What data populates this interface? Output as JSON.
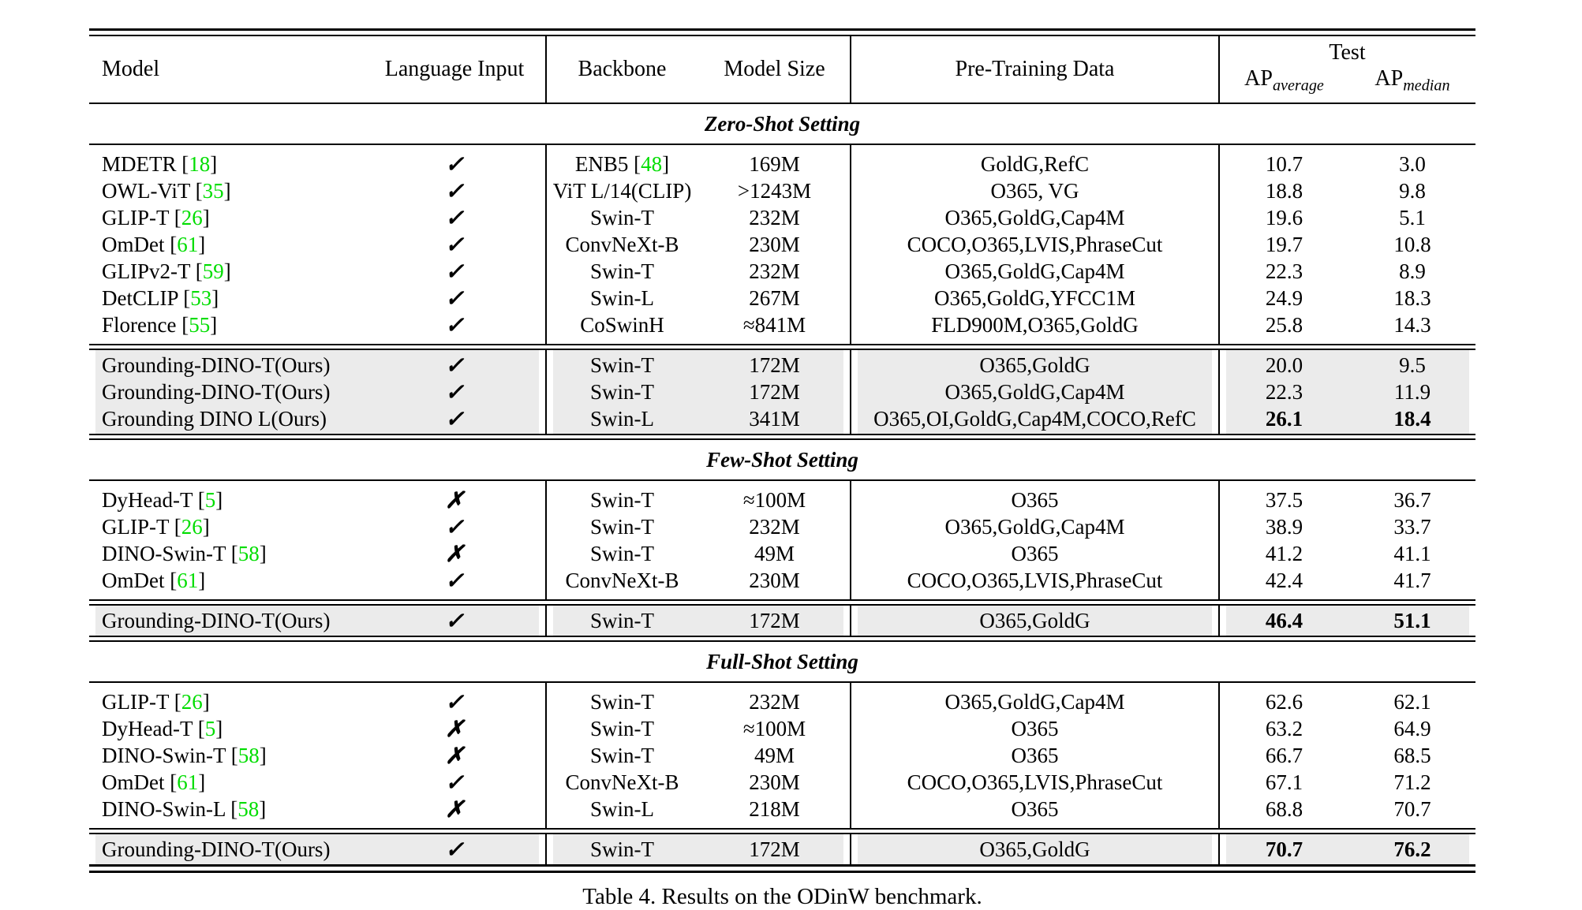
{
  "page": {
    "caption": "Table 4. Results on the ODinW benchmark."
  },
  "colors": {
    "citation": "#00dd00",
    "highlight_row": "#ebebeb"
  },
  "glyphs": {
    "check": "✓",
    "cross": "✗"
  },
  "punct": {
    "cite_open": " [",
    "cite_close": "]"
  },
  "header": {
    "model": "Model",
    "language_input": "Language Input",
    "backbone": "Backbone",
    "model_size": "Model Size",
    "pretraining_data": "Pre-Training Data",
    "test": "Test",
    "ap_average": {
      "base": "AP",
      "sub": "average"
    },
    "ap_median": {
      "base": "AP",
      "sub": "median"
    }
  },
  "sections": [
    {
      "title": "Zero-Shot Setting",
      "rows": [
        {
          "model": "MDETR",
          "cite": "18",
          "lang": "check",
          "backbone": "ENB5",
          "backbone_cite": "48",
          "size": "169M",
          "pretrain": "GoldG,RefC",
          "ap_avg": "10.7",
          "ap_med": "3.0"
        },
        {
          "model": "OWL-ViT",
          "cite": "35",
          "lang": "check",
          "backbone": "ViT L/14(CLIP)",
          "size": ">1243M",
          "pretrain": "O365, VG",
          "ap_avg": "18.8",
          "ap_med": "9.8"
        },
        {
          "model": "GLIP-T",
          "cite": "26",
          "lang": "check",
          "backbone": "Swin-T",
          "size": "232M",
          "pretrain": "O365,GoldG,Cap4M",
          "ap_avg": "19.6",
          "ap_med": "5.1"
        },
        {
          "model": "OmDet",
          "cite": "61",
          "lang": "check",
          "backbone": "ConvNeXt-B",
          "size": "230M",
          "pretrain": "COCO,O365,LVIS,PhraseCut",
          "ap_avg": "19.7",
          "ap_med": "10.8"
        },
        {
          "model": "GLIPv2-T",
          "cite": "59",
          "lang": "check",
          "backbone": "Swin-T",
          "size": "232M",
          "pretrain": "O365,GoldG,Cap4M",
          "ap_avg": "22.3",
          "ap_med": "8.9"
        },
        {
          "model": "DetCLIP",
          "cite": "53",
          "lang": "check",
          "backbone": "Swin-L",
          "size": "267M",
          "pretrain": "O365,GoldG,YFCC1M",
          "ap_avg": "24.9",
          "ap_med": "18.3"
        },
        {
          "model": "Florence",
          "cite": "55",
          "lang": "check",
          "backbone": "CoSwinH",
          "size": "≈841M",
          "pretrain": "FLD900M,O365,GoldG",
          "ap_avg": "25.8",
          "ap_med": "14.3"
        }
      ],
      "ours_rows": [
        {
          "model": "Grounding-DINO-T(Ours)",
          "lang": "check",
          "backbone": "Swin-T",
          "size": "172M",
          "pretrain": "O365,GoldG",
          "ap_avg": "20.0",
          "ap_med": "9.5"
        },
        {
          "model": "Grounding-DINO-T(Ours)",
          "lang": "check",
          "backbone": "Swin-T",
          "size": "172M",
          "pretrain": "O365,GoldG,Cap4M",
          "ap_avg": "22.3",
          "ap_med": "11.9"
        },
        {
          "model": "Grounding DINO L(Ours)",
          "lang": "check",
          "backbone": "Swin-L",
          "size": "341M",
          "pretrain": "O365,OI,GoldG,Cap4M,COCO,RefC",
          "ap_avg": "26.1",
          "ap_med": "18.4",
          "ap_bold": true
        }
      ]
    },
    {
      "title": "Few-Shot Setting",
      "rows": [
        {
          "model": "DyHead-T",
          "cite": "5",
          "lang": "cross",
          "backbone": "Swin-T",
          "size": "≈100M",
          "pretrain": "O365",
          "ap_avg": "37.5",
          "ap_med": "36.7"
        },
        {
          "model": "GLIP-T",
          "cite": "26",
          "lang": "check",
          "backbone": "Swin-T",
          "size": "232M",
          "pretrain": "O365,GoldG,Cap4M",
          "ap_avg": "38.9",
          "ap_med": "33.7"
        },
        {
          "model": "DINO-Swin-T",
          "cite": "58",
          "lang": "cross",
          "backbone": "Swin-T",
          "size": "49M",
          "pretrain": "O365",
          "ap_avg": "41.2",
          "ap_med": "41.1"
        },
        {
          "model": "OmDet",
          "cite": "61",
          "lang": "check",
          "backbone": "ConvNeXt-B",
          "size": "230M",
          "pretrain": "COCO,O365,LVIS,PhraseCut",
          "ap_avg": "42.4",
          "ap_med": "41.7"
        }
      ],
      "ours_rows": [
        {
          "model": "Grounding-DINO-T(Ours)",
          "lang": "check",
          "backbone": "Swin-T",
          "size": "172M",
          "pretrain": "O365,GoldG",
          "ap_avg": "46.4",
          "ap_med": "51.1",
          "ap_bold": true
        }
      ]
    },
    {
      "title": "Full-Shot Setting",
      "rows": [
        {
          "model": "GLIP-T",
          "cite": "26",
          "lang": "check",
          "backbone": "Swin-T",
          "size": "232M",
          "pretrain": "O365,GoldG,Cap4M",
          "ap_avg": "62.6",
          "ap_med": "62.1"
        },
        {
          "model": "DyHead-T",
          "cite": "5",
          "lang": "cross",
          "backbone": "Swin-T",
          "size": "≈100M",
          "pretrain": "O365",
          "ap_avg": "63.2",
          "ap_med": "64.9"
        },
        {
          "model": "DINO-Swin-T",
          "cite": "58",
          "lang": "cross",
          "backbone": "Swin-T",
          "size": "49M",
          "pretrain": "O365",
          "ap_avg": "66.7",
          "ap_med": "68.5"
        },
        {
          "model": "OmDet",
          "cite": "61",
          "lang": "check",
          "backbone": "ConvNeXt-B",
          "size": "230M",
          "pretrain": "COCO,O365,LVIS,PhraseCut",
          "ap_avg": "67.1",
          "ap_med": "71.2"
        },
        {
          "model": "DINO-Swin-L",
          "cite": "58",
          "lang": "cross",
          "backbone": "Swin-L",
          "size": "218M",
          "pretrain": "O365",
          "ap_avg": "68.8",
          "ap_med": "70.7"
        }
      ],
      "ours_rows": [
        {
          "model": "Grounding-DINO-T(Ours)",
          "lang": "check",
          "backbone": "Swin-T",
          "size": "172M",
          "pretrain": "O365,GoldG",
          "ap_avg": "70.7",
          "ap_med": "76.2",
          "ap_bold": true
        }
      ]
    }
  ]
}
